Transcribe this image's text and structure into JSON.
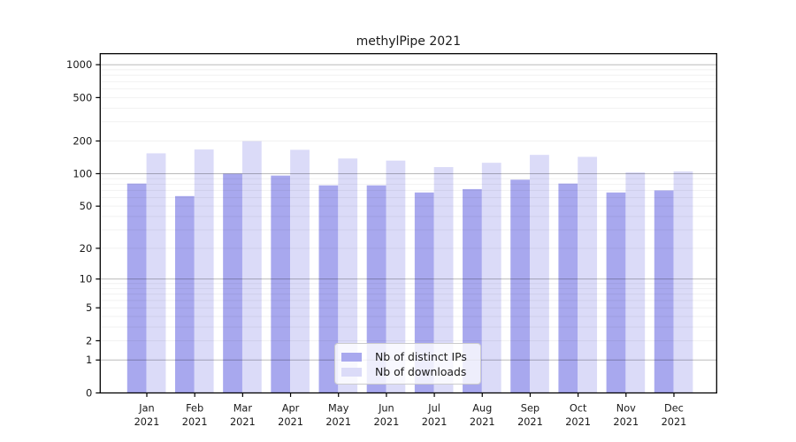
{
  "title": "methylPipe 2021",
  "colors": {
    "distinct_ips": "#a8a8ee",
    "downloads": "#dbdbf8",
    "grid_major": "rgba(0,0,0,0.27)",
    "grid_minor": "rgba(0,0,0,0.055)",
    "axis": "#000000",
    "text": "#1a1a1a",
    "legend_border": "#cccccc"
  },
  "legend": {
    "items": [
      "Nb of distinct IPs",
      "Nb of downloads"
    ],
    "position": "lower center"
  },
  "chart_data": {
    "type": "bar",
    "title": "methylPipe 2021",
    "categories": [
      "Jan",
      "Feb",
      "Mar",
      "Apr",
      "May",
      "Jun",
      "Jul",
      "Aug",
      "Sep",
      "Oct",
      "Nov",
      "Dec"
    ],
    "year_label": "2021",
    "series": [
      {
        "name": "Nb of distinct IPs",
        "color": "#a8a8ee",
        "values": [
          81,
          62,
          100,
          96,
          78,
          78,
          67,
          72,
          88,
          81,
          67,
          70
        ]
      },
      {
        "name": "Nb of downloads",
        "color": "#dbdbf8",
        "values": [
          154,
          167,
          199,
          166,
          138,
          132,
          115,
          126,
          149,
          143,
          103,
          105
        ]
      }
    ],
    "yscale": "log1p",
    "yticks": [
      0,
      1,
      2,
      5,
      10,
      20,
      50,
      100,
      200,
      500,
      1000
    ],
    "major_gridlines": [
      1,
      10,
      100,
      1000
    ],
    "minor_gridlines": [
      2,
      3,
      4,
      5,
      6,
      7,
      8,
      9,
      20,
      30,
      40,
      50,
      60,
      70,
      80,
      90,
      200,
      300,
      400,
      500,
      600,
      700,
      800,
      900
    ],
    "ylim": [
      0,
      1262
    ],
    "grid": true,
    "legend_position": "lower center"
  }
}
